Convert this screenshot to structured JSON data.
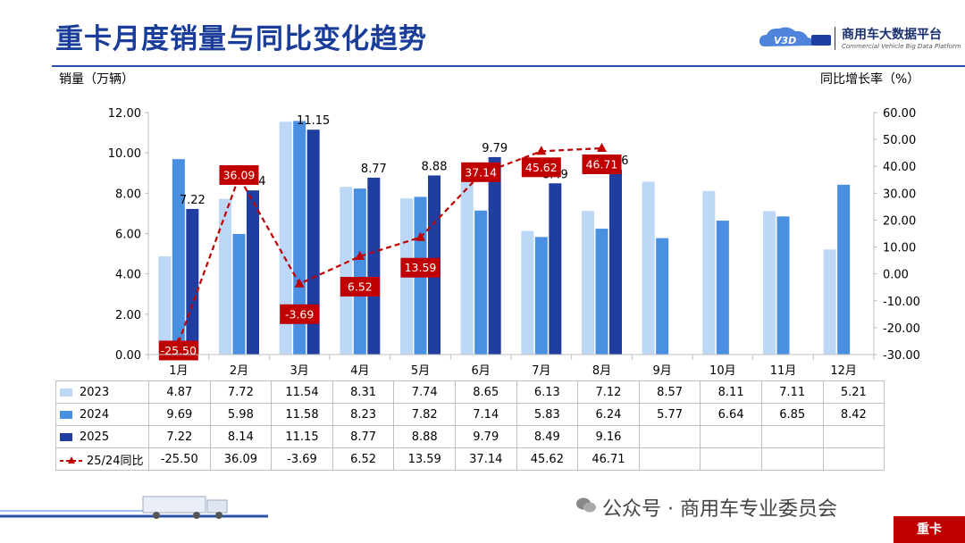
{
  "title": "重卡月度销量与同比变化趋势",
  "logo": {
    "mark": "V3D",
    "name": "商用车大数据平台",
    "subtitle": "Commercial Vehicle Big Data Platform"
  },
  "watermark_text": "公众号 · 商用车专业委员会",
  "footer_tag": "重卡",
  "colors": {
    "s2023": "#bdd7f7",
    "s2024": "#4a90e2",
    "s2025": "#1f3ea0",
    "yoy": "#c00000",
    "title": "#1a3d9a"
  },
  "chart_data": {
    "type": "bar",
    "xlabel": "",
    "ylabel": "销量（万辆）",
    "y2label": "同比增长率（%）",
    "ylim": [
      0,
      12
    ],
    "y2lim": [
      -30,
      60
    ],
    "yticks": [
      "0.00",
      "2.00",
      "4.00",
      "6.00",
      "8.00",
      "10.00",
      "12.00"
    ],
    "y2ticks": [
      "-30.00",
      "-20.00",
      "-10.00",
      "0.00",
      "10.00",
      "20.00",
      "30.00",
      "40.00",
      "50.00",
      "60.00"
    ],
    "categories": [
      "1月",
      "2月",
      "3月",
      "4月",
      "5月",
      "6月",
      "7月",
      "8月",
      "9月",
      "10月",
      "11月",
      "12月"
    ],
    "series": [
      {
        "name": "2023",
        "values": [
          4.87,
          7.72,
          11.54,
          8.31,
          7.74,
          8.65,
          6.13,
          7.12,
          8.57,
          8.11,
          7.11,
          5.21
        ]
      },
      {
        "name": "2024",
        "values": [
          9.69,
          5.98,
          11.58,
          8.23,
          7.82,
          7.14,
          5.83,
          6.24,
          5.77,
          6.64,
          6.85,
          8.42
        ]
      },
      {
        "name": "2025",
        "values": [
          7.22,
          8.14,
          11.15,
          8.77,
          8.88,
          9.79,
          8.49,
          9.16,
          null,
          null,
          null,
          null
        ]
      },
      {
        "name": "25/24同比",
        "type": "line",
        "axis": "right",
        "values": [
          -25.5,
          36.09,
          -3.69,
          6.52,
          13.59,
          37.14,
          45.62,
          46.71,
          null,
          null,
          null,
          null
        ]
      }
    ],
    "bar_labels_2025": [
      "7.22",
      "8.14",
      "11.15",
      "8.77",
      "8.88",
      "9.79",
      "8.49",
      "9.16"
    ],
    "yoy_labels": [
      "-25.50",
      "36.09",
      "-3.69",
      "6.52",
      "13.59",
      "37.14",
      "45.62",
      "46.71"
    ],
    "table": {
      "rows": [
        {
          "label": "2023",
          "cells": [
            "4.87",
            "7.72",
            "11.54",
            "8.31",
            "7.74",
            "8.65",
            "6.13",
            "7.12",
            "8.57",
            "8.11",
            "7.11",
            "5.21"
          ]
        },
        {
          "label": "2024",
          "cells": [
            "9.69",
            "5.98",
            "11.58",
            "8.23",
            "7.82",
            "7.14",
            "5.83",
            "6.24",
            "5.77",
            "6.64",
            "6.85",
            "8.42"
          ]
        },
        {
          "label": "2025",
          "cells": [
            "7.22",
            "8.14",
            "11.15",
            "8.77",
            "8.88",
            "9.79",
            "8.49",
            "9.16",
            "",
            "",
            "",
            ""
          ]
        },
        {
          "label": "25/24同比",
          "cells": [
            "-25.50",
            "36.09",
            "-3.69",
            "6.52",
            "13.59",
            "37.14",
            "45.62",
            "46.71",
            "",
            "",
            "",
            ""
          ]
        }
      ]
    }
  }
}
